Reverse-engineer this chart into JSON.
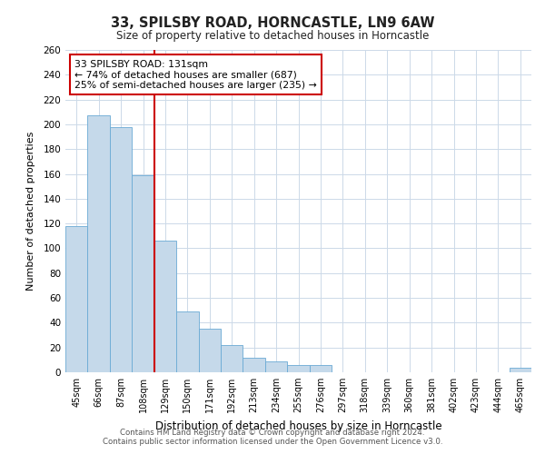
{
  "title": "33, SPILSBY ROAD, HORNCASTLE, LN9 6AW",
  "subtitle": "Size of property relative to detached houses in Horncastle",
  "xlabel": "Distribution of detached houses by size in Horncastle",
  "ylabel": "Number of detached properties",
  "bin_labels": [
    "45sqm",
    "66sqm",
    "87sqm",
    "108sqm",
    "129sqm",
    "150sqm",
    "171sqm",
    "192sqm",
    "213sqm",
    "234sqm",
    "255sqm",
    "276sqm",
    "297sqm",
    "318sqm",
    "339sqm",
    "360sqm",
    "381sqm",
    "402sqm",
    "423sqm",
    "444sqm",
    "465sqm"
  ],
  "bar_values": [
    118,
    207,
    198,
    159,
    106,
    49,
    35,
    22,
    12,
    9,
    6,
    6,
    0,
    0,
    0,
    0,
    0,
    0,
    0,
    0,
    4
  ],
  "bar_color": "#c5d9ea",
  "bar_edgecolor": "#6aaad4",
  "vline_x_index": 4,
  "vline_color": "#cc0000",
  "annotation_title": "33 SPILSBY ROAD: 131sqm",
  "annotation_line1": "← 74% of detached houses are smaller (687)",
  "annotation_line2": "25% of semi-detached houses are larger (235) →",
  "annotation_box_edgecolor": "#cc0000",
  "ylim": [
    0,
    260
  ],
  "yticks": [
    0,
    20,
    40,
    60,
    80,
    100,
    120,
    140,
    160,
    180,
    200,
    220,
    240,
    260
  ],
  "footer_line1": "Contains HM Land Registry data © Crown copyright and database right 2024.",
  "footer_line2": "Contains public sector information licensed under the Open Government Licence v3.0.",
  "background_color": "#ffffff",
  "grid_color": "#ccd9e8"
}
